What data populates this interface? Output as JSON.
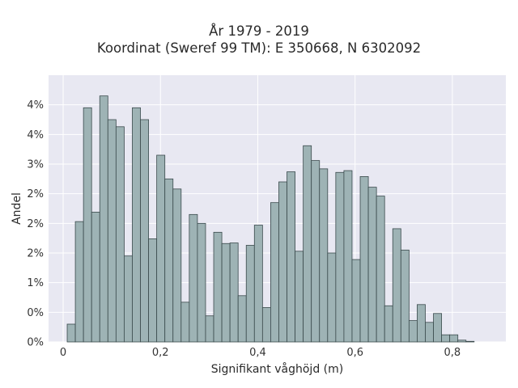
{
  "chart_data": {
    "type": "bar",
    "title": "År 1979 - 2019",
    "subtitle": "Koordinat (Sweref 99 TM): E 350668, N 6302092",
    "xlabel": "Signifikant våghöjd (m)",
    "ylabel": "Andel",
    "xlim": [
      -0.03,
      0.91
    ],
    "ylim": [
      0,
      4.5
    ],
    "x_ticks": [
      {
        "value": 0.0,
        "label": "0"
      },
      {
        "value": 0.2,
        "label": "0,2"
      },
      {
        "value": 0.4,
        "label": "0,4"
      },
      {
        "value": 0.6,
        "label": "0,6"
      },
      {
        "value": 0.8,
        "label": "0,8"
      }
    ],
    "y_ticks": [
      {
        "value": 0.0,
        "label": "0%"
      },
      {
        "value": 0.5,
        "label": "0%"
      },
      {
        "value": 1.0,
        "label": "1%"
      },
      {
        "value": 1.5,
        "label": "2%"
      },
      {
        "value": 2.0,
        "label": "2%"
      },
      {
        "value": 2.5,
        "label": "2%"
      },
      {
        "value": 3.0,
        "label": "3%"
      },
      {
        "value": 3.5,
        "label": "4%"
      },
      {
        "value": 4.0,
        "label": "4%"
      }
    ],
    "bin_start": 0.0083,
    "bin_width": 0.01673,
    "values": [
      0.3,
      2.03,
      3.95,
      2.19,
      4.15,
      3.75,
      3.63,
      1.45,
      3.95,
      3.75,
      1.74,
      3.15,
      2.75,
      2.58,
      0.67,
      2.15,
      2.0,
      0.44,
      1.85,
      1.66,
      1.67,
      0.78,
      1.63,
      1.97,
      0.58,
      2.35,
      2.7,
      2.87,
      1.53,
      3.31,
      3.06,
      2.92,
      1.5,
      2.86,
      2.89,
      1.39,
      2.79,
      2.61,
      2.46,
      0.61,
      1.91,
      1.55,
      0.36,
      0.63,
      0.33,
      0.48,
      0.12,
      0.12,
      0.03,
      0.01
    ],
    "colors": {
      "bar_fill": "#9eb3b5",
      "bar_stroke": "#3a4a4c",
      "plot_bg": "#e8e8f2",
      "grid": "#ffffff"
    },
    "grid": true
  }
}
